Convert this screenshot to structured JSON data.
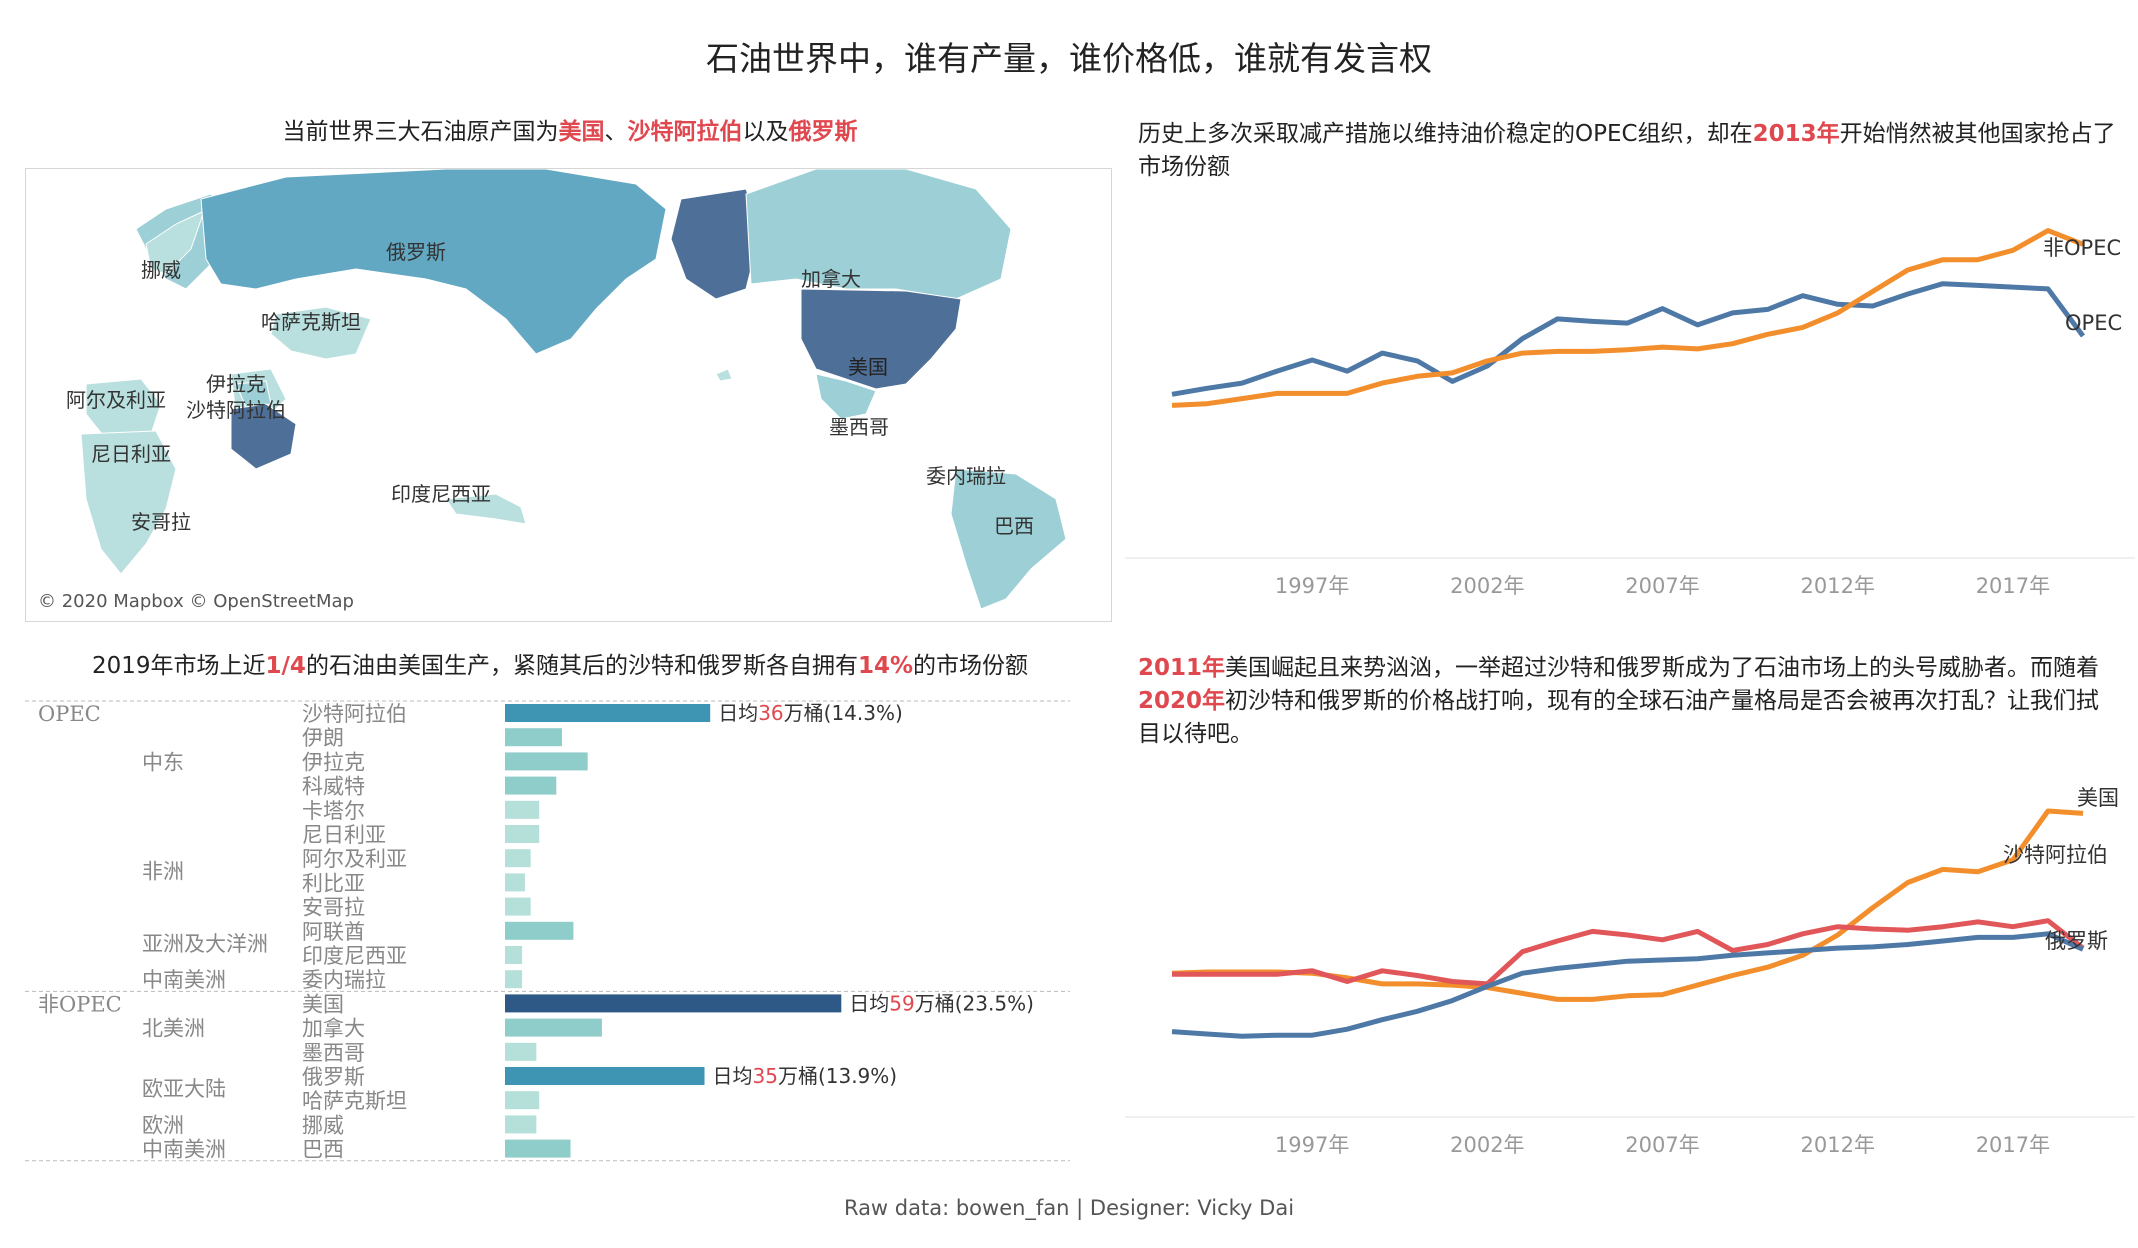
{
  "title": "石油世界中，谁有产量，谁价格低，谁就有发言权",
  "map": {
    "title_parts": [
      {
        "text": "当前世界三大石油原产国为",
        "hi": false
      },
      {
        "text": "美国",
        "hi": true
      },
      {
        "text": "、",
        "hi": false
      },
      {
        "text": "沙特阿拉伯",
        "hi": true
      },
      {
        "text": "以及",
        "hi": false
      },
      {
        "text": "俄罗斯",
        "hi": true
      }
    ],
    "labels": {
      "norway": "挪威",
      "russia": "俄罗斯",
      "kazakhstan": "哈萨克斯坦",
      "iraq": "伊拉克",
      "algeria": "阿尔及利亚",
      "saudi": "沙特阿拉伯",
      "nigeria": "尼日利亚",
      "angola": "安哥拉",
      "indonesia": "印度尼西亚",
      "canada": "加拿大",
      "usa": "美国",
      "mexico": "墨西哥",
      "venezuela": "委内瑞拉",
      "brazil": "巴西"
    },
    "attribution": "© 2020 Mapbox © OpenStreetMap",
    "colors": {
      "high": "#4e6f97",
      "mid": "#62a8c2",
      "low": "#9ccfd6",
      "lower": "#b9e0df"
    }
  },
  "bars": {
    "title_parts": [
      {
        "text": "2019年市场上近",
        "hi": false
      },
      {
        "text": "1/4",
        "hi": true
      },
      {
        "text": "的石油由美国生产，紧随其后的沙特和俄罗斯各自拥有",
        "hi": false
      },
      {
        "text": "14%",
        "hi": true
      },
      {
        "text": "的市场份额",
        "hi": false
      }
    ],
    "groups": [
      "OPEC",
      "非OPEC"
    ],
    "regions": [
      "中东",
      "非洲",
      "亚洲及大洋洲",
      "中南美洲",
      "北美洲",
      "欧亚大陆",
      "欧洲",
      "中南美洲"
    ],
    "country_list": [
      "沙特阿拉伯",
      "伊朗",
      "伊拉克",
      "科威特",
      "卡塔尔",
      "尼日利亚",
      "阿尔及利亚",
      "利比亚",
      "安哥拉",
      "阿联酋",
      "印度尼西亚",
      "委内瑞拉",
      "美国",
      "加拿大",
      "墨西哥",
      "俄罗斯",
      "哈萨克斯坦",
      "挪威",
      "巴西"
    ],
    "annotations": [
      {
        "country": "沙特阿拉伯",
        "prefix": "日均",
        "value": "36",
        "suffix": "万桶(14.3%)"
      },
      {
        "country": "美国",
        "prefix": "日均",
        "value": "59",
        "suffix": "万桶(23.5%)"
      },
      {
        "country": "俄罗斯",
        "prefix": "日均",
        "value": "35",
        "suffix": "万桶(13.9%)"
      }
    ],
    "colors": {
      "top1": "#2e5986",
      "top2": "#3e94b3",
      "mid": "#8fcdcb",
      "low": "#b5e0da"
    }
  },
  "opec": {
    "title_parts": [
      {
        "text": "历史上多次采取减产措施以维持油价稳定的OPEC组织，却在",
        "hi": false
      },
      {
        "text": "2013年",
        "hi": true
      },
      {
        "text": "开始悄然被其他国家抢占了市场份额",
        "hi": false
      }
    ],
    "colors": {
      "OPEC": "#4e79a7",
      "非OPEC": "#f28e2b"
    }
  },
  "rivals": {
    "title_parts": [
      {
        "text": "2011年",
        "hi": true
      },
      {
        "text": "美国崛起且来势汹汹，一举超过沙特和俄罗斯成为了石油市场上的头号威胁者。而随着",
        "hi": false
      },
      {
        "text": "2020年",
        "hi": true
      },
      {
        "text": "初沙特和俄罗斯的价格战打响，现有的全球石油产量格局是否会被再次打乱？让我们拭目以待吧。",
        "hi": false
      }
    ],
    "colors": {
      "美国": "#f28e2b",
      "沙特阿拉伯": "#e15759",
      "俄罗斯": "#4e79a7"
    }
  },
  "chart_data": [
    {
      "type": "bar",
      "unit": "万桶",
      "categories": [
        "沙特阿拉伯",
        "伊朗",
        "伊拉克",
        "科威特",
        "卡塔尔",
        "尼日利亚",
        "阿尔及利亚",
        "利比亚",
        "安哥拉",
        "阿联酋",
        "印度尼西亚",
        "委内瑞拉",
        "美国",
        "加拿大",
        "墨西哥",
        "俄罗斯",
        "哈萨克斯坦",
        "挪威",
        "巴西"
      ],
      "values": [
        36,
        10,
        14.5,
        9,
        6,
        6,
        4.5,
        3.5,
        4.5,
        12,
        3,
        3,
        59,
        17,
        5.5,
        35,
        6,
        5.5,
        11.5
      ]
    },
    {
      "type": "line",
      "x": [
        1993,
        1994,
        1995,
        1996,
        1997,
        1998,
        1999,
        2000,
        2001,
        2002,
        2003,
        2004,
        2005,
        2006,
        2007,
        2008,
        2009,
        2010,
        2011,
        2012,
        2013,
        2014,
        2015,
        2016,
        2017,
        2018,
        2019
      ],
      "xticks": [
        "1997年",
        "2002年",
        "2007年",
        "2012年",
        "2017年"
      ],
      "series": [
        {
          "name": "OPEC",
          "values": [
            33.5,
            34.2,
            34.8,
            36.2,
            37.5,
            36.2,
            38.3,
            37.4,
            35,
            36.8,
            40,
            42.3,
            42,
            41.8,
            43.5,
            41.6,
            43,
            43.4,
            45,
            44,
            43.8,
            45.2,
            46.4,
            46.2,
            46,
            45.8,
            40.3
          ]
        },
        {
          "name": "非OPEC",
          "values": [
            32.2,
            32.4,
            33,
            33.6,
            33.6,
            33.6,
            34.8,
            35.6,
            36,
            37.4,
            38.3,
            38.5,
            38.5,
            38.7,
            39,
            38.8,
            39.4,
            40.5,
            41.3,
            43,
            45.5,
            48,
            49.2,
            49.2,
            50.3,
            52.6,
            51
          ]
        }
      ]
    },
    {
      "type": "line",
      "x": [
        1993,
        1994,
        1995,
        1996,
        1997,
        1998,
        1999,
        2000,
        2001,
        2002,
        2003,
        2004,
        2005,
        2006,
        2007,
        2008,
        2009,
        2010,
        2011,
        2012,
        2013,
        2014,
        2015,
        2016,
        2017,
        2018,
        2019
      ],
      "xticks": [
        "1997年",
        "2002年",
        "2007年",
        "2012年",
        "2017年"
      ],
      "series": [
        {
          "name": "美国",
          "values": [
            11.8,
            11.9,
            11.9,
            11.9,
            11.8,
            11.4,
            10.9,
            10.9,
            10.8,
            10.6,
            10.1,
            9.6,
            9.6,
            9.9,
            10,
            10.8,
            11.6,
            12.3,
            13.3,
            15,
            17.3,
            19.4,
            20.5,
            20.3,
            21.3,
            25.4,
            25.2
          ]
        },
        {
          "name": "沙特阿拉伯",
          "values": [
            11.7,
            11.7,
            11.7,
            11.7,
            12,
            11.1,
            12,
            11.6,
            11.1,
            10.9,
            13.6,
            14.5,
            15.3,
            15,
            14.6,
            15.3,
            13.7,
            14.2,
            15.1,
            15.7,
            15.5,
            15.4,
            15.7,
            16.1,
            15.7,
            16.2,
            13.9
          ]
        },
        {
          "name": "俄罗斯",
          "values": [
            6.9,
            6.7,
            6.5,
            6.6,
            6.6,
            7.1,
            7.9,
            8.6,
            9.5,
            10.7,
            11.8,
            12.2,
            12.5,
            12.8,
            12.9,
            13,
            13.3,
            13.5,
            13.7,
            13.9,
            14,
            14.2,
            14.5,
            14.8,
            14.8,
            15.1,
            13.8
          ]
        }
      ]
    }
  ],
  "footer": "Raw data: bowen_fan | Designer: Vicky Dai"
}
